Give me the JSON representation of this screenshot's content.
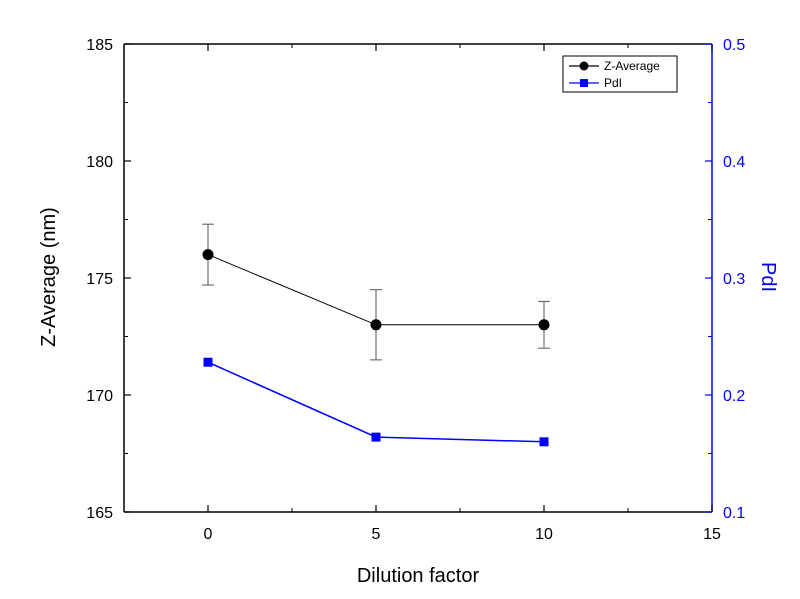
{
  "chart_data": {
    "type": "line",
    "xlabel": "Dilution factor",
    "ylabel_left": "Z-Average (nm)",
    "ylabel_right": "PdI",
    "xlim": [
      -2.5,
      15
    ],
    "ylim_left": [
      165,
      185
    ],
    "ylim_right": [
      0.1,
      0.5
    ],
    "x_ticks": [
      "0",
      "5",
      "10",
      "15"
    ],
    "y_left_ticks": [
      "165",
      "170",
      "175",
      "180",
      "185"
    ],
    "y_right_ticks": [
      "0.1",
      "0.2",
      "0.3",
      "0.4",
      "0.5"
    ],
    "grid": false,
    "legend_position": "top-right",
    "colors": {
      "left_axis": "#000000",
      "right_axis": "#0000ff"
    },
    "series": [
      {
        "name": "Z-Average",
        "axis": "left",
        "color": "#000000",
        "marker": "circle",
        "x": [
          0,
          5,
          10
        ],
        "y": [
          176.0,
          173.0,
          173.0
        ],
        "error": [
          1.3,
          1.5,
          1.0
        ]
      },
      {
        "name": "PdI",
        "axis": "right",
        "color": "#0000ff",
        "marker": "square",
        "x": [
          0,
          5,
          10
        ],
        "y": [
          0.228,
          0.164,
          0.16
        ]
      }
    ]
  }
}
